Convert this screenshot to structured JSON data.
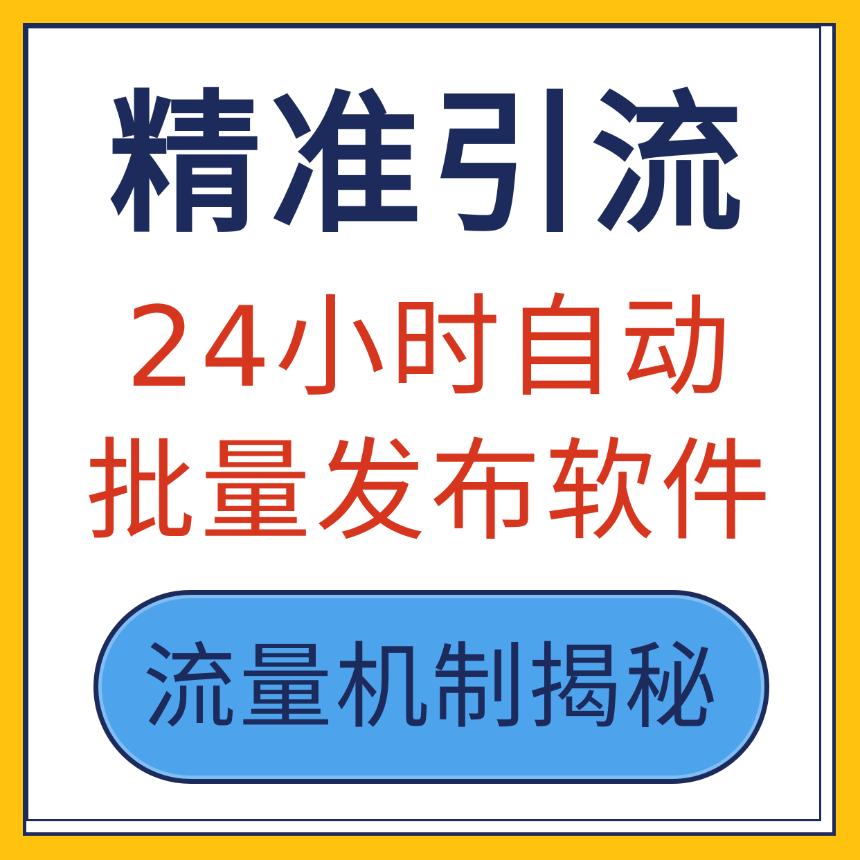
{
  "headline": "精准引流",
  "subheadline_line1": "24小时自动",
  "subheadline_line2": "批量发布软件",
  "badge_label": "流量机制揭秘",
  "colors": {
    "background": "#ffc20e",
    "border": "#1c2a5c",
    "headline": "#1c2a5c",
    "subheadline": "#d7361e",
    "badge_fill": "#4ea3ed",
    "badge_text": "#1c2a5c"
  }
}
